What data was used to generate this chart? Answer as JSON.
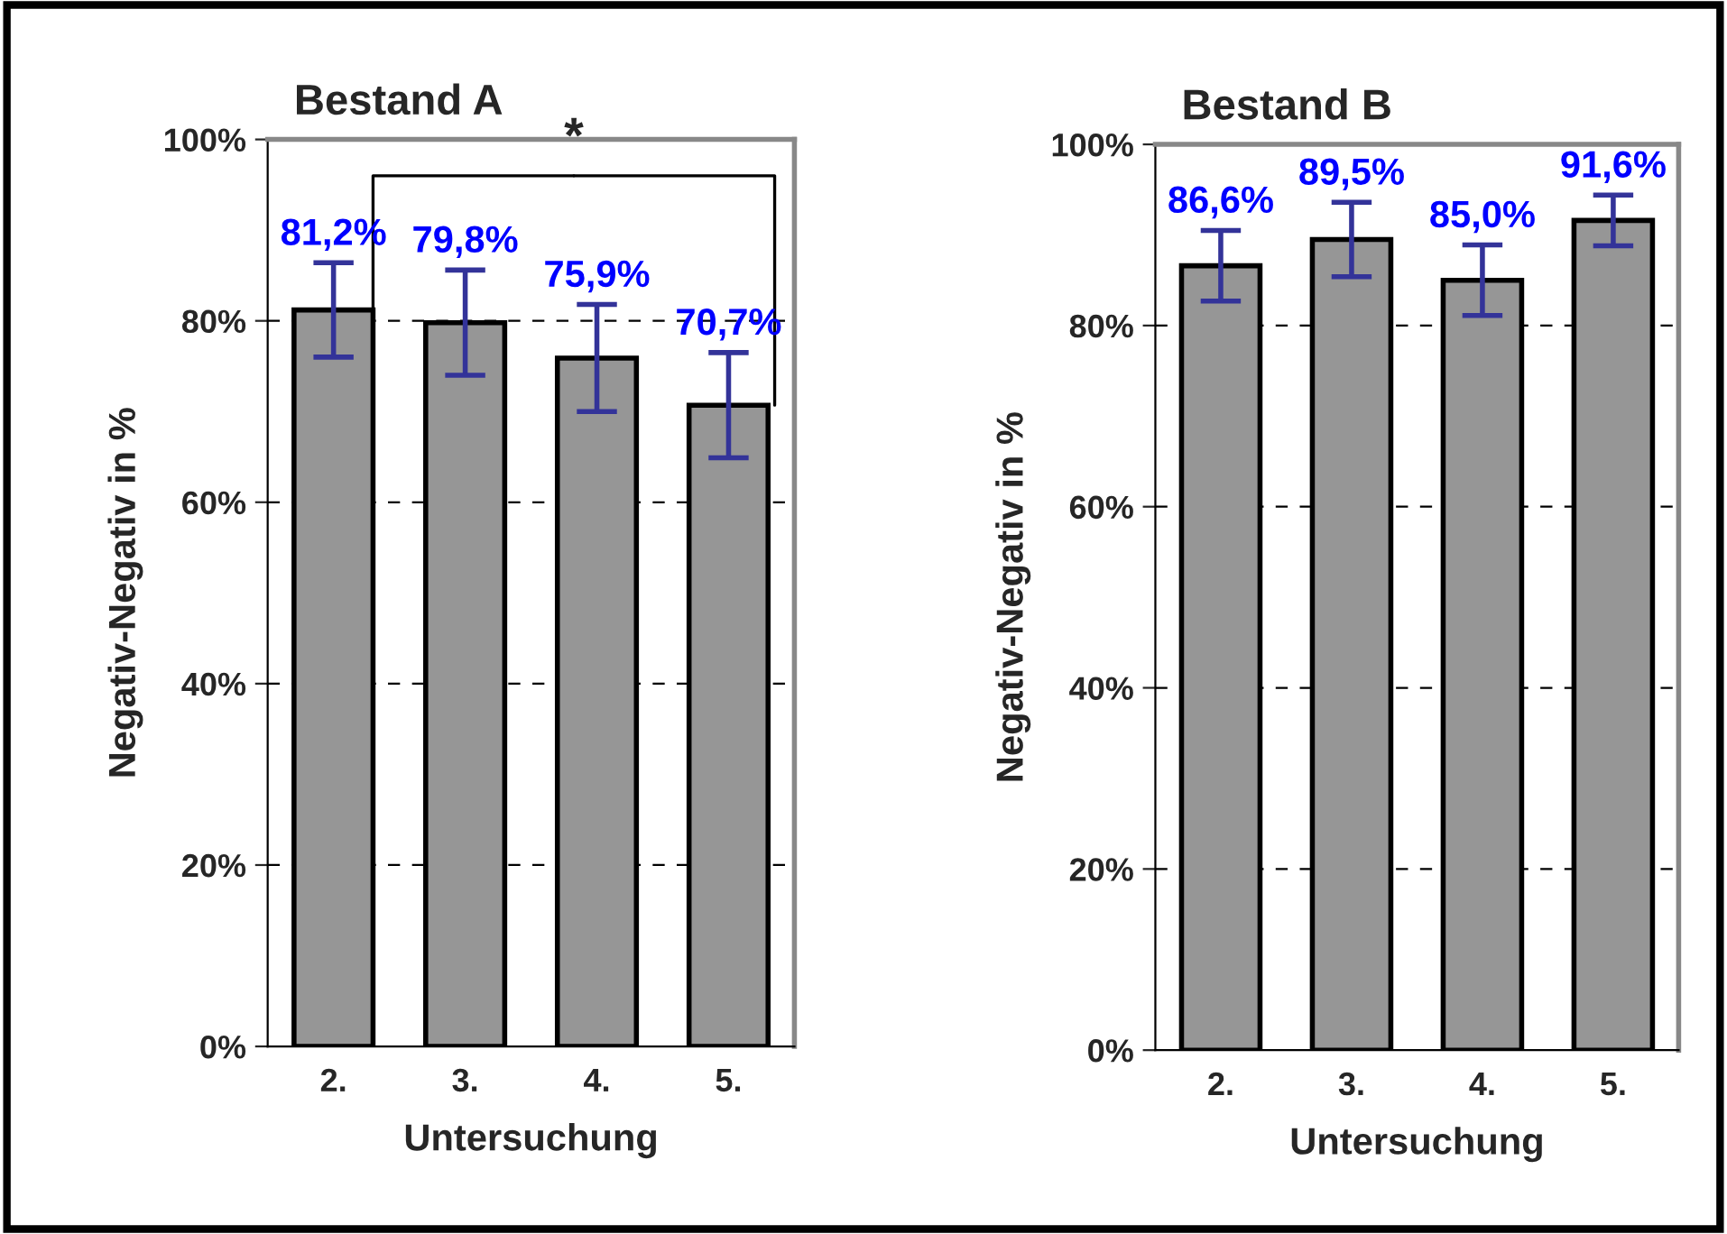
{
  "chart_data": [
    {
      "type": "bar",
      "title": "Bestand A",
      "xlabel": "Untersuchung",
      "ylabel": "Negativ-Negativ in %",
      "categories": [
        "2.",
        "3.",
        "4.",
        "5."
      ],
      "series": [
        {
          "color": "#969696",
          "values": [
            81.2,
            79.8,
            75.9,
            70.7
          ],
          "errors": [
            5.2,
            5.8,
            5.9,
            5.8
          ],
          "value_labels": [
            "81,2%",
            "79,8%",
            "75,9%",
            "70,7%"
          ]
        }
      ],
      "ylim": [
        0,
        100
      ],
      "yticks": [
        {
          "value": 0,
          "label": "0%"
        },
        {
          "value": 20,
          "label": "20%"
        },
        {
          "value": 40,
          "label": "40%"
        },
        {
          "value": 60,
          "label": "60%"
        },
        {
          "value": 80,
          "label": "80%"
        },
        {
          "value": 100,
          "label": "100%"
        }
      ],
      "grid": "y",
      "annotations": [
        "*"
      ]
    },
    {
      "type": "bar",
      "title": "Bestand B",
      "xlabel": "Untersuchung",
      "ylabel": "Negativ-Negativ in %",
      "categories": [
        "2.",
        "3.",
        "4.",
        "5."
      ],
      "series": [
        {
          "color": "#969696",
          "values": [
            86.6,
            89.5,
            85.0,
            91.6
          ],
          "errors": [
            3.9,
            4.1,
            3.9,
            2.8
          ],
          "value_labels": [
            "86,6%",
            "89,5%",
            "85,0%",
            "91,6%"
          ]
        }
      ],
      "ylim": [
        0,
        100
      ],
      "yticks": [
        {
          "value": 0,
          "label": "0%"
        },
        {
          "value": 20,
          "label": "20%"
        },
        {
          "value": 40,
          "label": "40%"
        },
        {
          "value": 60,
          "label": "60%"
        },
        {
          "value": 80,
          "label": "80%"
        },
        {
          "value": 100,
          "label": "100%"
        }
      ],
      "grid": "y"
    }
  ]
}
